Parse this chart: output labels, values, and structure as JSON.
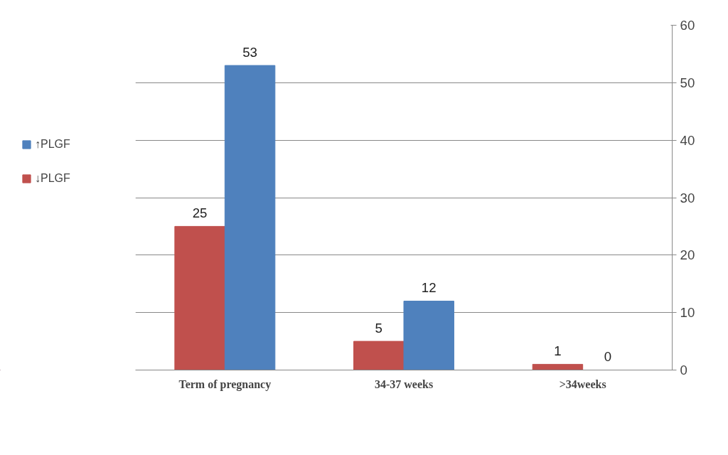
{
  "chart_data": {
    "type": "bar",
    "categories": [
      "Term of pregnancy",
      "34-37 weeks",
      ">34weeks"
    ],
    "series": [
      {
        "name": "↓PLGF",
        "color": "#c0504d",
        "values": [
          25,
          5,
          1
        ]
      },
      {
        "name": "↑PLGF",
        "color": "#4f81bd",
        "values": [
          53,
          12,
          0
        ]
      }
    ],
    "ylim": [
      0,
      60
    ],
    "yticks": [
      0,
      10,
      20,
      30,
      40,
      50,
      60
    ],
    "grid": "y",
    "data_labels": true,
    "legend": "left"
  }
}
